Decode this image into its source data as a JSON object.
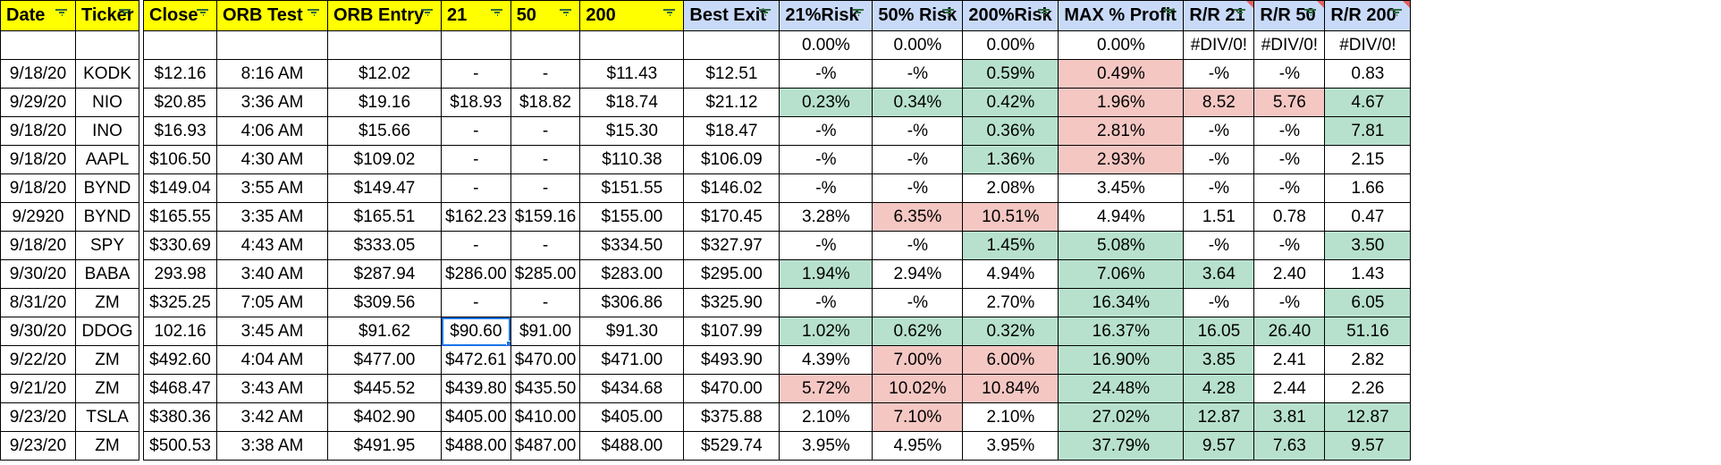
{
  "colors": {
    "yellow": "#ffff00",
    "blue": "#c9daf8",
    "green": "#b7e1cd",
    "red": "#f4c7c3",
    "selection": "#1a73e8"
  },
  "headers": [
    {
      "label": "Date",
      "fill": "yellow"
    },
    {
      "label": "Ticker",
      "fill": "yellow"
    },
    {
      "label": "Close",
      "fill": "yellow"
    },
    {
      "label": "ORB Test",
      "fill": "yellow"
    },
    {
      "label": "ORB Entry",
      "fill": "yellow"
    },
    {
      "label": "21",
      "fill": "yellow"
    },
    {
      "label": "50",
      "fill": "yellow"
    },
    {
      "label": "200",
      "fill": "yellow"
    },
    {
      "label": "Best Exit",
      "fill": "blue"
    },
    {
      "label": "21%Risk",
      "fill": "blue"
    },
    {
      "label": "50% Risk",
      "fill": "blue"
    },
    {
      "label": "200%Risk",
      "fill": "blue"
    },
    {
      "label": "MAX % Profit",
      "fill": "blue"
    },
    {
      "label": "R/R 21",
      "fill": "blue",
      "note": true
    },
    {
      "label": "R/R 50",
      "fill": "blue",
      "note": true
    },
    {
      "label": "R/R 200",
      "fill": "blue",
      "note": true
    }
  ],
  "summary_row": [
    "",
    "",
    "",
    "",
    "",
    "",
    "",
    "",
    "",
    "0.00%",
    "0.00%",
    "0.00%",
    "0.00%",
    "#DIV/0!",
    "#DIV/0!",
    "#DIV/0!"
  ],
  "rows": [
    {
      "cells": [
        "9/18/20",
        "KODK",
        "$12.16",
        "8:16 AM",
        "$12.02",
        "-",
        "-",
        "$11.43",
        "$12.51",
        "-%",
        "-%",
        "0.59%",
        "0.49%",
        "-%",
        "-%",
        "0.83"
      ],
      "fills": {
        "11": "green",
        "12": "red"
      }
    },
    {
      "cells": [
        "9/29/20",
        "NIO",
        "$20.85",
        "3:36 AM",
        "$19.16",
        "$18.93",
        "$18.82",
        "$18.74",
        "$21.12",
        "0.23%",
        "0.34%",
        "0.42%",
        "1.96%",
        "8.52",
        "5.76",
        "4.67"
      ],
      "fills": {
        "9": "green",
        "10": "green",
        "11": "green",
        "12": "red",
        "13": "red",
        "14": "red",
        "15": "green"
      }
    },
    {
      "cells": [
        "9/18/20",
        "INO",
        "$16.93",
        "4:06 AM",
        "$15.66",
        "-",
        "-",
        "$15.30",
        "$18.47",
        "-%",
        "-%",
        "0.36%",
        "2.81%",
        "-%",
        "-%",
        "7.81"
      ],
      "fills": {
        "11": "green",
        "12": "red",
        "15": "green"
      }
    },
    {
      "cells": [
        "9/18/20",
        "AAPL",
        "$106.50",
        "4:30 AM",
        "$109.02",
        "-",
        "-",
        "$110.38",
        "$106.09",
        "-%",
        "-%",
        "1.36%",
        "2.93%",
        "-%",
        "-%",
        "2.15"
      ],
      "fills": {
        "11": "green",
        "12": "red"
      }
    },
    {
      "cells": [
        "9/18/20",
        "BYND",
        "$149.04",
        "3:55 AM",
        "$149.47",
        "-",
        "-",
        "$151.55",
        "$146.02",
        "-%",
        "-%",
        "2.08%",
        "3.45%",
        "-%",
        "-%",
        "1.66"
      ],
      "fills": {}
    },
    {
      "cells": [
        "9/2920",
        "BYND",
        "$165.55",
        "3:35 AM",
        "$165.51",
        "$162.23",
        "$159.16",
        "$155.00",
        "$170.45",
        "3.28%",
        "6.35%",
        "10.51%",
        "4.94%",
        "1.51",
        "0.78",
        "0.47"
      ],
      "fills": {
        "10": "red",
        "11": "red"
      }
    },
    {
      "cells": [
        "9/18/20",
        "SPY",
        "$330.69",
        "4:43 AM",
        "$333.05",
        "-",
        "-",
        "$334.50",
        "$327.97",
        "-%",
        "-%",
        "1.45%",
        "5.08%",
        "-%",
        "-%",
        "3.50"
      ],
      "fills": {
        "11": "green",
        "12": "green",
        "15": "green"
      }
    },
    {
      "cells": [
        "9/30/20",
        "BABA",
        "293.98",
        "3:40 AM",
        "$287.94",
        "$286.00",
        "$285.00",
        "$283.00",
        "$295.00",
        "1.94%",
        "2.94%",
        "4.94%",
        "7.06%",
        "3.64",
        "2.40",
        "1.43"
      ],
      "fills": {
        "9": "green",
        "12": "green",
        "13": "green"
      }
    },
    {
      "cells": [
        "8/31/20",
        "ZM",
        "$325.25",
        "7:05 AM",
        "$309.56",
        "-",
        "-",
        "$306.86",
        "$325.90",
        "-%",
        "-%",
        "2.70%",
        "16.34%",
        "-%",
        "-%",
        "6.05"
      ],
      "fills": {
        "12": "green",
        "15": "green"
      }
    },
    {
      "cells": [
        "9/30/20",
        "DDOG",
        "102.16",
        "3:45 AM",
        "$91.62",
        "$90.60",
        "$91.00",
        "$91.30",
        "$107.99",
        "1.02%",
        "0.62%",
        "0.32%",
        "16.37%",
        "16.05",
        "26.40",
        "51.16"
      ],
      "fills": {
        "9": "green",
        "10": "green",
        "11": "green",
        "12": "green",
        "13": "green",
        "14": "green",
        "15": "green"
      },
      "selected": 5
    },
    {
      "cells": [
        "9/22/20",
        "ZM",
        "$492.60",
        "4:04 AM",
        "$477.00",
        "$472.61",
        "$470.00",
        "$471.00",
        "$493.90",
        "4.39%",
        "7.00%",
        "6.00%",
        "16.90%",
        "3.85",
        "2.41",
        "2.82"
      ],
      "fills": {
        "10": "red",
        "11": "red",
        "12": "green",
        "13": "green"
      }
    },
    {
      "cells": [
        "9/21/20",
        "ZM",
        "$468.47",
        "3:43 AM",
        "$445.52",
        "$439.80",
        "$435.50",
        "$434.68",
        "$470.00",
        "5.72%",
        "10.02%",
        "10.84%",
        "24.48%",
        "4.28",
        "2.44",
        "2.26"
      ],
      "fills": {
        "9": "red",
        "10": "red",
        "11": "red",
        "12": "green",
        "13": "green"
      }
    },
    {
      "cells": [
        "9/23/20",
        "TSLA",
        "$380.36",
        "3:42 AM",
        "$402.90",
        "$405.00",
        "$410.00",
        "$405.00",
        "$375.88",
        "2.10%",
        "7.10%",
        "2.10%",
        "27.02%",
        "12.87",
        "3.81",
        "12.87"
      ],
      "fills": {
        "10": "red",
        "12": "green",
        "13": "green",
        "14": "green",
        "15": "green"
      }
    },
    {
      "cells": [
        "9/23/20",
        "ZM",
        "$500.53",
        "3:38 AM",
        "$491.95",
        "$488.00",
        "$487.00",
        "$488.00",
        "$529.74",
        "3.95%",
        "4.95%",
        "3.95%",
        "37.79%",
        "9.57",
        "7.63",
        "9.57"
      ],
      "fills": {
        "12": "green",
        "13": "green",
        "14": "green",
        "15": "green"
      }
    }
  ]
}
